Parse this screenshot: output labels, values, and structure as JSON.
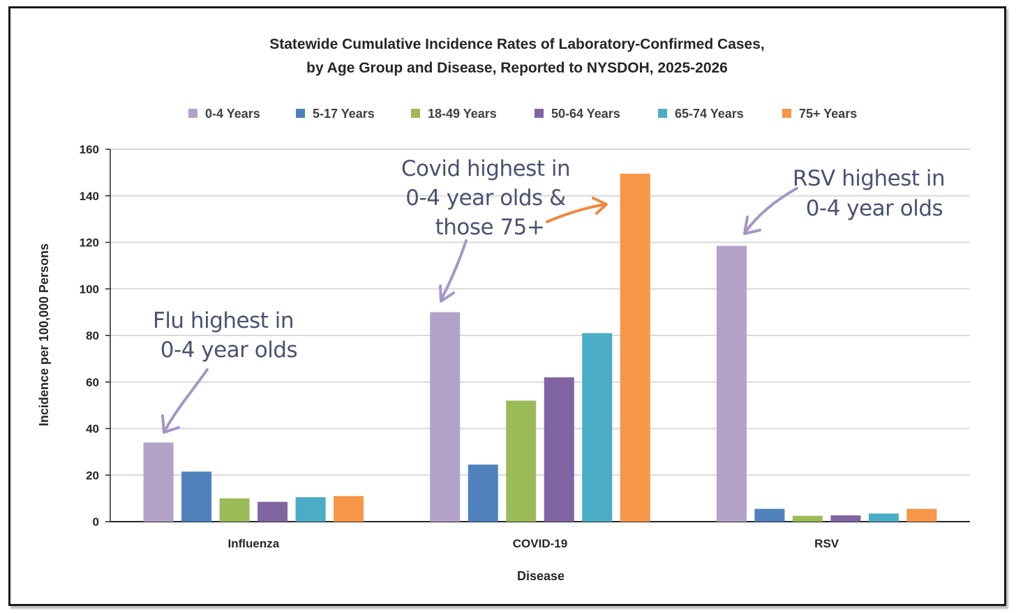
{
  "chart_data": {
    "type": "bar",
    "title": "Statewide Cumulative Incidence Rates of Laboratory-Confirmed Cases,",
    "subtitle": "by Age Group and Disease, Reported to NYSDOH, 2025-2026",
    "xlabel": "Disease",
    "ylabel": "Incidence per 100,000 Persons",
    "ylim": [
      0,
      160
    ],
    "yticks": [
      "0",
      "20",
      "40",
      "60",
      "80",
      "100",
      "120",
      "140",
      "160"
    ],
    "grid": true,
    "legend_position": "top",
    "categories": [
      "Influenza",
      "COVID-19",
      "RSV"
    ],
    "series": [
      {
        "name": "0-4 Years",
        "color": "#b3a2c7",
        "values": [
          34,
          90,
          118.5
        ]
      },
      {
        "name": "5-17 Years",
        "color": "#4f81bd",
        "values": [
          21.5,
          24.5,
          5.5
        ]
      },
      {
        "name": "18-49 Years",
        "color": "#9bbb59",
        "values": [
          10,
          52,
          2.5
        ]
      },
      {
        "name": "50-64 Years",
        "color": "#8064a2",
        "values": [
          8.5,
          62,
          2.7
        ]
      },
      {
        "name": "65-74 Years",
        "color": "#4bacc6",
        "values": [
          10.5,
          81,
          3.5
        ]
      },
      {
        "name": "75+ Years",
        "color": "#f79646",
        "values": [
          11,
          149.5,
          5.5
        ]
      }
    ],
    "annotations": [
      {
        "lines": [
          "Flu highest in",
          "0-4 year olds"
        ]
      },
      {
        "lines": [
          "Covid highest in",
          "0-4 year olds &",
          "those 75+"
        ]
      },
      {
        "lines": [
          "RSV highest in",
          "0-4 year olds"
        ]
      }
    ]
  }
}
